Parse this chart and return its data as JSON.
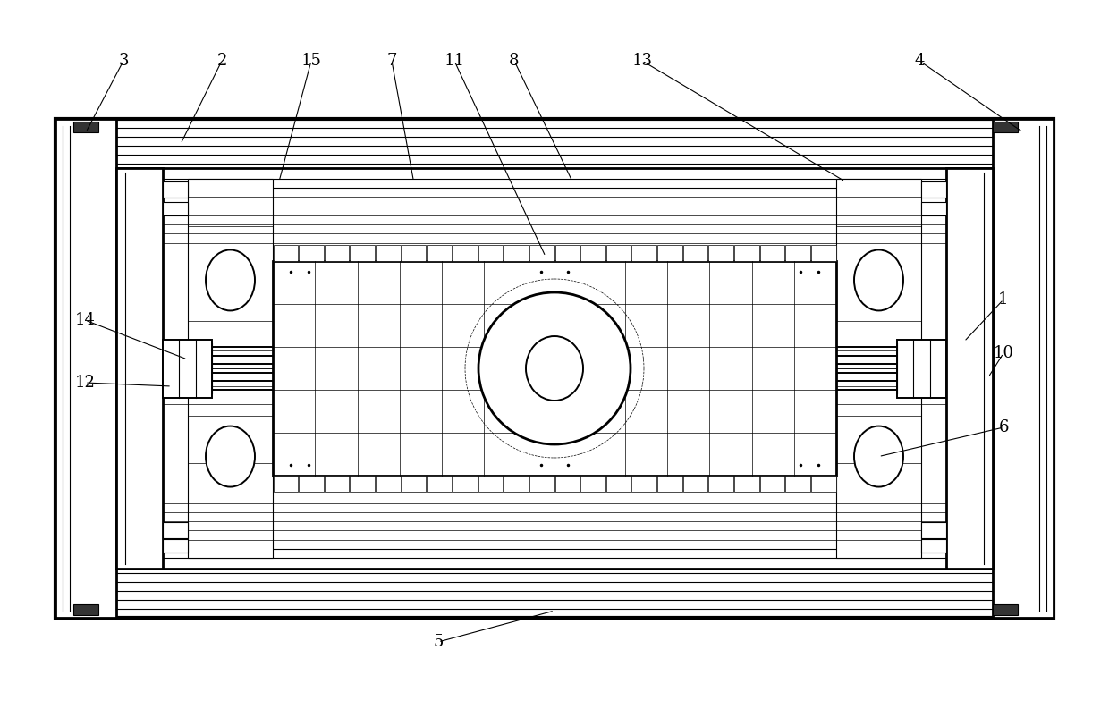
{
  "bg_color": "#ffffff",
  "line_color": "#000000",
  "fig_width": 12.4,
  "fig_height": 7.93
}
